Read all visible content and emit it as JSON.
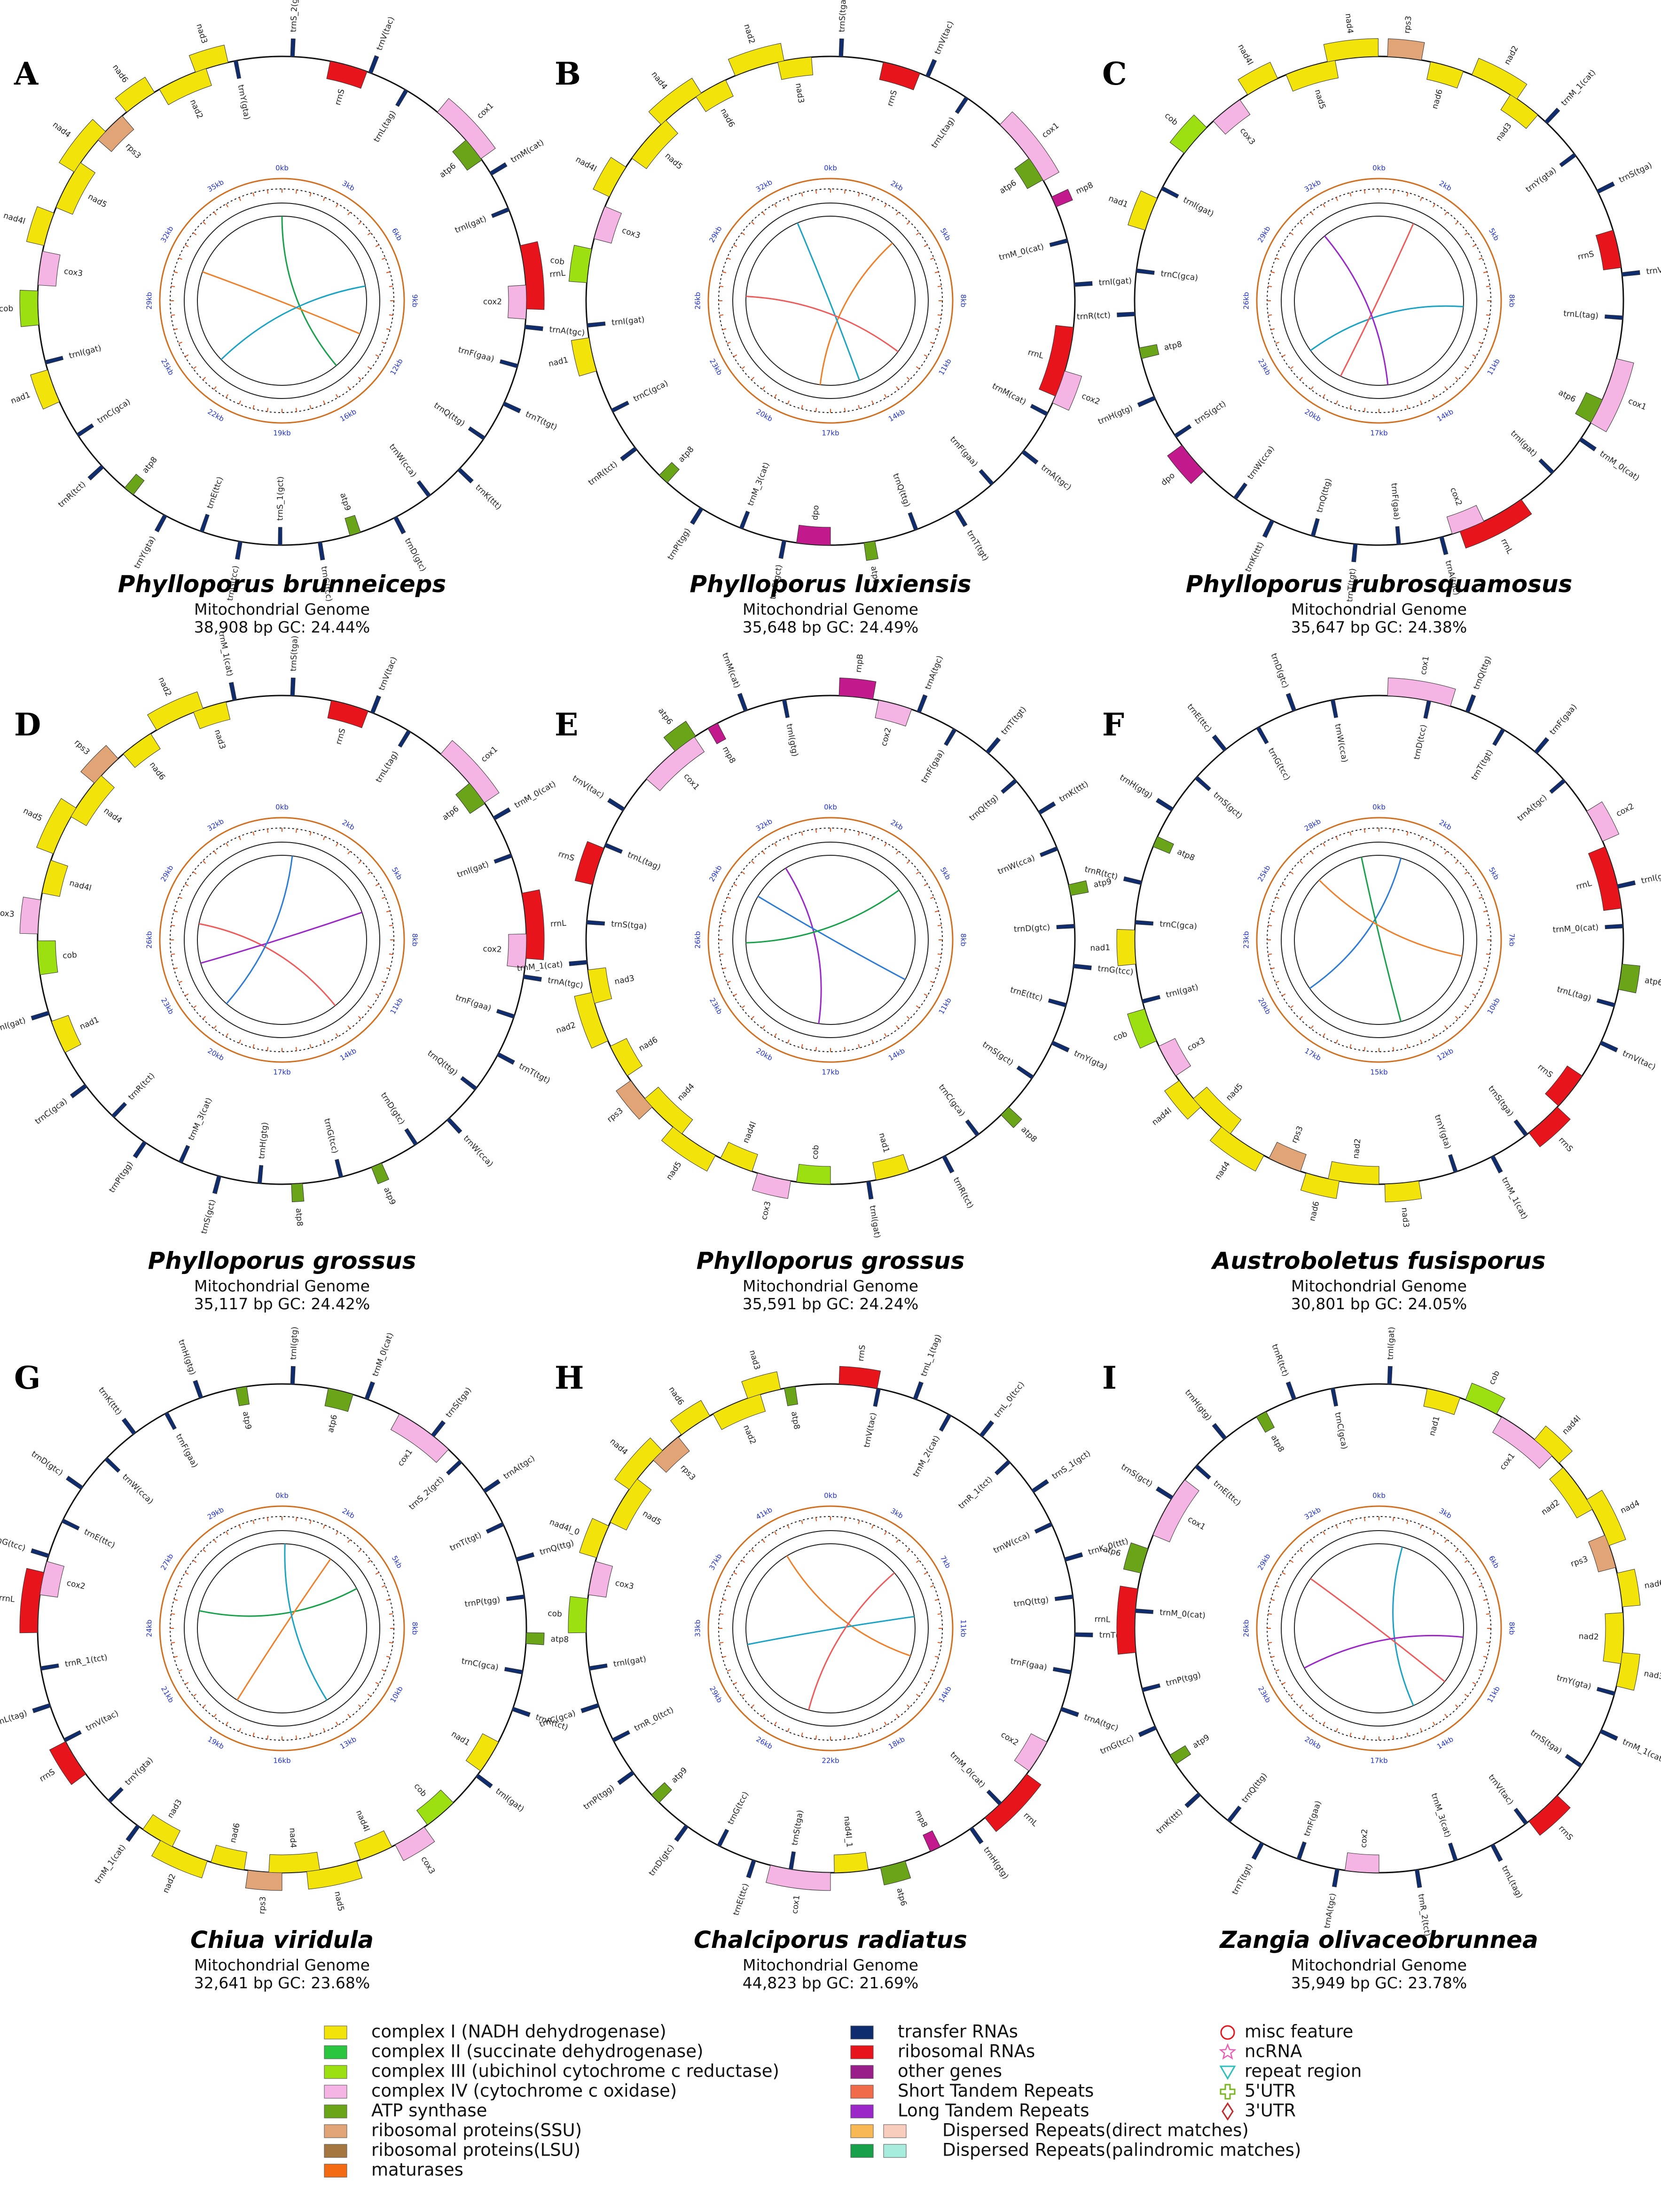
{
  "panels": [
    {
      "letter": "A",
      "species": "Phylloporus brunneiceps",
      "subtitle": "Mitochondrial Genome",
      "stats": "38,908 bp  GC: 24.44%",
      "kb_labels": [
        "0kb",
        "3kb",
        "6kb",
        "9kb",
        "12kb",
        "16kb",
        "19kb",
        "22kb",
        "25kb",
        "29kb",
        "32kb",
        "35kb"
      ],
      "genes": [
        "trnS_2(gct)",
        "rrnS",
        "trnV(tac)",
        "trnL(tag)",
        "cox1",
        "atp6",
        "trnM(cat)",
        "trnI(gat)",
        "rrnL",
        "cox2",
        "trnA(tgc)",
        "trnF(gaa)",
        "trnT(tgt)",
        "trnQ(ttg)",
        "trnK(ttt)",
        "trnW(cca)",
        "trnD(gtc)",
        "atp9",
        "trnG(tcc)",
        "trnS_1(gct)",
        "trnG(tcc)",
        "trnE(ttc)",
        "trnY(gta)",
        "atp8",
        "trnR(tct)",
        "trnC(gca)",
        "nad1",
        "trnI(gat)",
        "cob",
        "cox3",
        "nad4l",
        "nad5",
        "nad4",
        "rps3",
        "nad6",
        "nad2",
        "nad3",
        "trnY(gta)"
      ]
    },
    {
      "letter": "B",
      "species": "Phylloporus luxiensis",
      "subtitle": "Mitochondrial Genome",
      "stats": "35,648 bp  GC: 24.49%",
      "kb_labels": [
        "0kb",
        "2kb",
        "5kb",
        "8kb",
        "11kb",
        "14kb",
        "17kb",
        "20kb",
        "23kb",
        "26kb",
        "29kb",
        "32kb"
      ],
      "genes": [
        "trnS(tga)",
        "rrnS",
        "trnV(tac)",
        "trnL(tag)",
        "cox1",
        "atp6",
        "mp8",
        "trnM_0(cat)",
        "trnI(gat)",
        "rrnL",
        "cox2",
        "trnM(cat)",
        "trnA(tgc)",
        "trnF(gaa)",
        "trnT(tgt)",
        "trnQ(ttg)",
        "atp9",
        "dpo",
        "trnS(gct)",
        "trnM_3(cat)",
        "trnP(tgg)",
        "atp8",
        "trnR(tct)",
        "trnC(gca)",
        "nad1",
        "trnI(gat)",
        "cob",
        "cox3",
        "nad4l",
        "nad5",
        "nad4",
        "nad6",
        "nad2",
        "nad3"
      ]
    },
    {
      "letter": "C",
      "species": "Phylloporus rubrosquamosus",
      "subtitle": "Mitochondrial Genome",
      "stats": "35,647 bp  GC: 24.38%",
      "kb_labels": [
        "0kb",
        "2kb",
        "5kb",
        "8kb",
        "11kb",
        "14kb",
        "17kb",
        "20kb",
        "23kb",
        "26kb",
        "29kb",
        "32kb"
      ],
      "genes": [
        "rps3",
        "nad6",
        "nad2",
        "nad3",
        "trnM_1(cat)",
        "trnY(gta)",
        "trnS(tga)",
        "rrnS",
        "trnV(tac)",
        "trnL(tag)",
        "cox1",
        "atp6",
        "trnM_0(cat)",
        "trnI(gat)",
        "rrnL",
        "cox2",
        "trnA(tgc)",
        "trnF(gaa)",
        "trnT(tgt)",
        "trnQ(ttg)",
        "trnK(ttt)",
        "trnW(cca)",
        "dpo",
        "trnS(gct)",
        "trnH(gtg)",
        "atp8",
        "trnR(tct)",
        "trnC(gca)",
        "nad1",
        "trnI(gat)",
        "cob",
        "cox3",
        "nad4l",
        "nad5",
        "nad4"
      ]
    },
    {
      "letter": "D",
      "species": "Phylloporus grossus",
      "subtitle": "Mitochondrial Genome",
      "stats": "35,117 bp  GC: 24.42%",
      "kb_labels": [
        "0kb",
        "2kb",
        "5kb",
        "8kb",
        "11kb",
        "14kb",
        "17kb",
        "20kb",
        "23kb",
        "26kb",
        "29kb",
        "32kb"
      ],
      "genes": [
        "trnS(tga)",
        "rrnS",
        "trnV(tac)",
        "trnL(tag)",
        "cox1",
        "atp6",
        "trnM_0(cat)",
        "trnI(gat)",
        "rrnL",
        "cox2",
        "trnA(tgc)",
        "trnF(gaa)",
        "trnT(tgt)",
        "trnQ(ttg)",
        "trnW(cca)",
        "trnD(gtc)",
        "atp9",
        "trnG(tcc)",
        "atp8",
        "trnH(gtg)",
        "trnS(gct)",
        "trnM_3(cat)",
        "trnP(tgg)",
        "trnR(tct)",
        "trnC(gca)",
        "nad1",
        "trnI(gat)",
        "cob",
        "cox3",
        "nad4l",
        "nad5",
        "nad4",
        "rps3",
        "nad6",
        "nad2",
        "nad3",
        "trnM_1(cat)"
      ]
    },
    {
      "letter": "E",
      "species": "Phylloporus grossus",
      "subtitle": "Mitochondrial Genome",
      "stats": "35,591 bp  GC: 24.24%",
      "kb_labels": [
        "0kb",
        "2kb",
        "5kb",
        "8kb",
        "11kb",
        "14kb",
        "17kb",
        "20kb",
        "23kb",
        "26kb",
        "29kb",
        "32kb"
      ],
      "genes": [
        "rnpB",
        "cox2",
        "trnA(tgc)",
        "trnF(gaa)",
        "trnT(tgt)",
        "trnQ(ttg)",
        "trnK(ttt)",
        "trnW(cca)",
        "atp9",
        "trnD(gtc)",
        "trnG(tcc)",
        "trnE(ttc)",
        "trnY(gta)",
        "trnS(gct)",
        "atp8",
        "trnC(gca)",
        "trnR(tct)",
        "nad1",
        "trnI(gat)",
        "cob",
        "cox3",
        "nad4l",
        "nad5",
        "nad4",
        "rps3",
        "nad6",
        "nad2",
        "nad3",
        "trnM_1(cat)",
        "trnS(tga)",
        "rrnS",
        "trnL(tag)",
        "trnV(tac)",
        "cox1",
        "atp6",
        "mp8",
        "trnM(cat)",
        "trnI(gtg)"
      ]
    },
    {
      "letter": "F",
      "species": "Austroboletus fusisporus",
      "subtitle": "Mitochondrial Genome",
      "stats": "30,801 bp  GC: 24.05%",
      "kb_labels": [
        "0kb",
        "2kb",
        "5kb",
        "7kb",
        "10kb",
        "12kb",
        "15kb",
        "17kb",
        "20kb",
        "23kb",
        "25kb",
        "28kb"
      ],
      "genes": [
        "cox1",
        "trnD(tcc)",
        "trnQ(ttg)",
        "trnT(tgt)",
        "trnF(gaa)",
        "trnA(tgc)",
        "cox2",
        "rrnL",
        "trnI(gtg)",
        "trnM_0(cat)",
        "atp6",
        "trnL(tag)",
        "trnV(tac)",
        "rrnS",
        "rrnS",
        "trnS(tga)",
        "trnM_1(cat)",
        "trnY(gta)",
        "nad3",
        "nad2",
        "nad6",
        "rps3",
        "nad4",
        "nad5",
        "nad4l",
        "cox3",
        "cob",
        "trnI(gat)",
        "nad1",
        "trnC(gca)",
        "trnR(tct)",
        "atp8",
        "trnH(gtg)",
        "trnS(gct)",
        "trnE(ttc)",
        "trnG(tcc)",
        "trnD(gtc)",
        "trnW(cca)"
      ]
    },
    {
      "letter": "G",
      "species": "Chiua viridula",
      "subtitle": "Mitochondrial Genome",
      "stats": "32,641 bp  GC: 23.68%",
      "kb_labels": [
        "0kb",
        "2kb",
        "5kb",
        "8kb",
        "10kb",
        "13kb",
        "16kb",
        "19kb",
        "21kb",
        "24kb",
        "27kb",
        "29kb"
      ],
      "genes": [
        "trnI(gtg)",
        "atp6",
        "trnM_0(cat)",
        "cox1",
        "trnS(tga)",
        "trnS_2(gct)",
        "trnA(tgc)",
        "trnT(tgt)",
        "trnQ(ttg)",
        "trnP(tgg)",
        "atp8",
        "trnC(gca)",
        "trnR(tct)",
        "nad1",
        "trnI(gat)",
        "cob",
        "cox3",
        "nad4l",
        "nad5",
        "nad4",
        "rps3",
        "nad6",
        "nad2",
        "nad3",
        "trnM_1(cat)",
        "trnY(gta)",
        "rrnS",
        "trnV(tac)",
        "trnL(tag)",
        "trnR_1(tct)",
        "rrnL",
        "cox2",
        "trnG(tcc)",
        "trnE(ttc)",
        "trnD(gtc)",
        "trnW(cca)",
        "trnK(ttt)",
        "trnF(gaa)",
        "trnH(gtg)",
        "atp9"
      ]
    },
    {
      "letter": "H",
      "species": "Chalciporus radiatus",
      "subtitle": "Mitochondrial Genome",
      "stats": "44,823 bp  GC: 21.69%",
      "kb_labels": [
        "0kb",
        "3kb",
        "7kb",
        "11kb",
        "14kb",
        "18kb",
        "22kb",
        "26kb",
        "29kb",
        "33kb",
        "37kb",
        "41kb"
      ],
      "genes": [
        "rrnS",
        "trnV(tac)",
        "trnL_1(tag)",
        "trnM_2(cat)",
        "trnL_0(tcc)",
        "trnR_1(tct)",
        "trnS_1(gct)",
        "trnW(cca)",
        "trnK_0(ttt)",
        "trnQ(ttg)",
        "trnT(tgt)",
        "trnF(gaa)",
        "trnA(tgc)",
        "cox2",
        "rrnL",
        "trnM_0(cat)",
        "trnH(gtg)",
        "mp8",
        "atp6",
        "nad4l_1",
        "cox1",
        "trnS(tga)",
        "trnE(ttc)",
        "trnG(tcc)",
        "trnD(gtc)",
        "atp9",
        "trnP(tgg)",
        "trnR_0(tct)",
        "trnC(gca)",
        "trnI(gat)",
        "cob",
        "cox3",
        "nad4l_0",
        "nad5",
        "nad4",
        "rps3",
        "nad6",
        "nad2",
        "nad3",
        "atp8"
      ]
    },
    {
      "letter": "I",
      "species": "Zangia olivaceobrunnea",
      "subtitle": "Mitochondrial Genome",
      "stats": "35,949 bp  GC: 23.78%",
      "kb_labels": [
        "0kb",
        "3kb",
        "6kb",
        "8kb",
        "11kb",
        "14kb",
        "17kb",
        "20kb",
        "23kb",
        "26kb",
        "29kb",
        "32kb"
      ],
      "genes": [
        "trnI(gat)",
        "nad1",
        "cob",
        "cox1",
        "nad4l",
        "nad2",
        "nad4",
        "rps3",
        "nad6",
        "nad2",
        "nad3",
        "trnY(gta)",
        "trnM_1(cat)",
        "trnS(tga)",
        "rrnS",
        "trnV(tac)",
        "trnL(tag)",
        "trnM_3(cat)",
        "trnR_2(tct)",
        "cox2",
        "trnA(tgc)",
        "trnF(gaa)",
        "trnT(tgt)",
        "trnQ(ttg)",
        "trnK(ttt)",
        "atp9",
        "trnG(tcc)",
        "trnP(tgg)",
        "rrnL",
        "trnM_0(cat)",
        "atp6",
        "cox1",
        "trnS(gct)",
        "trnE(ttc)",
        "trnH(gtg)",
        "atp8",
        "trnR(tct)",
        "trnC(gca)"
      ]
    }
  ],
  "legend": {
    "col1": [
      {
        "label": "complex I (NADH dehydrogenase)",
        "color": "#f2e40a"
      },
      {
        "label": "complex II (succinate dehydrogenase)",
        "color": "#2ac640"
      },
      {
        "label": "complex III (ubichinol cytochrome c reductase)",
        "color": "#9de011"
      },
      {
        "label": "complex IV (cytochrome c oxidase)",
        "color": "#f4b4e4"
      },
      {
        "label": "ATP synthase",
        "color": "#6aa419"
      },
      {
        "label": "ribosomal proteins(SSU)",
        "color": "#e1a476"
      },
      {
        "label": "ribosomal proteins(LSU)",
        "color": "#a57740"
      },
      {
        "label": "maturases",
        "color": "#f46a12"
      }
    ],
    "col2": [
      {
        "label": "transfer RNAs",
        "color": "#0f2d6e"
      },
      {
        "label": "ribosomal RNAs",
        "color": "#e8141c"
      },
      {
        "label": "other genes",
        "color": "#9a1e8a"
      },
      {
        "label": "Short Tandem Repeats",
        "color": "#ef6b4a"
      },
      {
        "label": "Long Tandem Repeats",
        "color": "#9b27c8"
      }
    ],
    "dispersed": [
      {
        "label": "Dispersed Repeats(direct matches)",
        "color1": "#f7b855",
        "color2": "#f8cdbd"
      },
      {
        "label": "Dispersed Repeats(palindromic matches)",
        "color1": "#18a14a",
        "color2": "#a7ecdc"
      }
    ],
    "col3": [
      {
        "label": "misc feature",
        "icon": "circle-icon",
        "color": "#e8141c"
      },
      {
        "label": "ncRNA",
        "icon": "star-icon",
        "color": "#ef5ab7"
      },
      {
        "label": "repeat region",
        "icon": "triangle-icon",
        "color": "#2cc0bd"
      },
      {
        "label": "5'UTR",
        "icon": "cross-icon",
        "color": "#7ab41e"
      },
      {
        "label": "3'UTR",
        "icon": "diamond-icon",
        "color": "#c02c2c"
      }
    ]
  }
}
